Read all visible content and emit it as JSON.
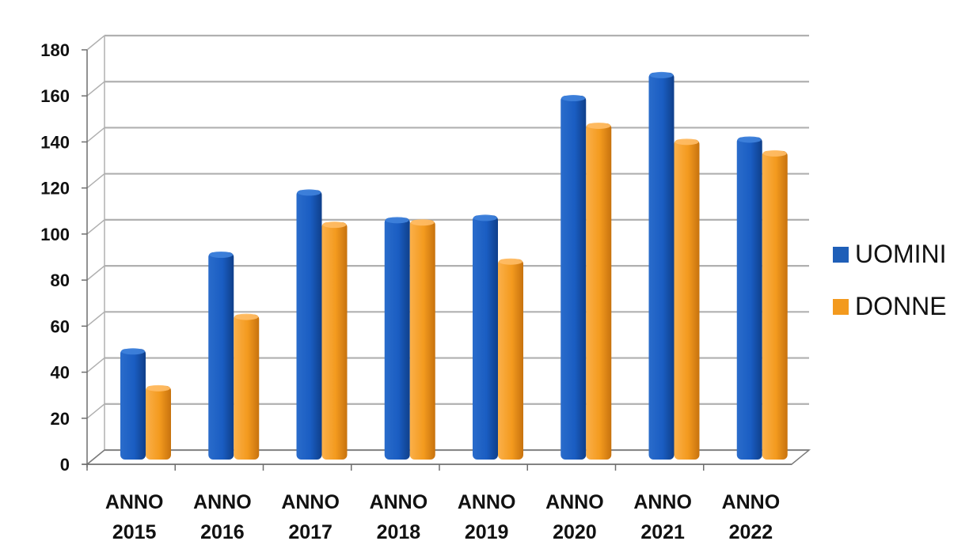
{
  "chart_data": {
    "type": "bar",
    "categories": [
      [
        "ANNO",
        "2015"
      ],
      [
        "ANNO",
        "2016"
      ],
      [
        "ANNO",
        "2017"
      ],
      [
        "ANNO",
        "2018"
      ],
      [
        "ANNO",
        "2019"
      ],
      [
        "ANNO",
        "2020"
      ],
      [
        "ANNO",
        "2021"
      ],
      [
        "ANNO",
        "2022"
      ]
    ],
    "series": [
      {
        "name": "UOMINI",
        "values": [
          48,
          90,
          117,
          105,
          106,
          158,
          168,
          140
        ]
      },
      {
        "name": "DONNE",
        "values": [
          32,
          63,
          103,
          104,
          87,
          146,
          139,
          134
        ]
      }
    ],
    "ylim": [
      0,
      180
    ],
    "yticks": [
      0,
      20,
      40,
      60,
      80,
      100,
      120,
      140,
      160,
      180
    ],
    "grid": true,
    "legend_position": "right",
    "style": "3d-column"
  },
  "colors": {
    "UOMINI": "#1f5fb8",
    "DONNE": "#f39a1e",
    "grid": "#b0b0b0",
    "axis_text": "#111111"
  }
}
